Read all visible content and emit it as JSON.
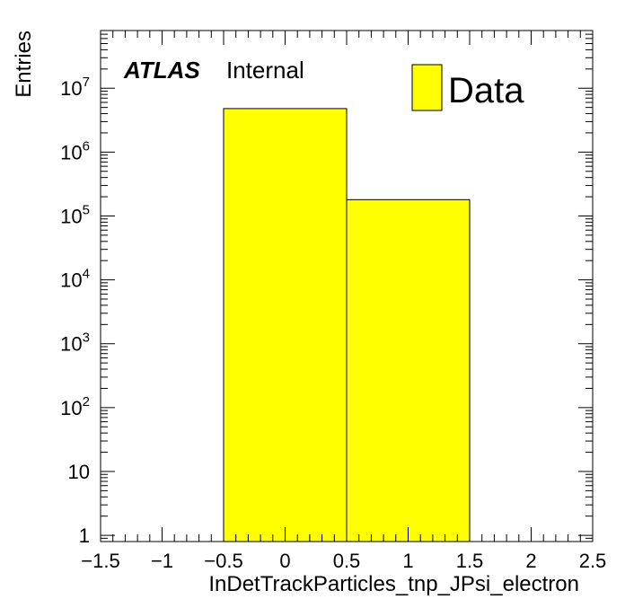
{
  "chart_data": {
    "type": "bar",
    "xlabel": "InDetTrackParticles_tnp_JPsi_electron",
    "ylabel": "Entries",
    "xlim": [
      -1.5,
      2.5
    ],
    "ylim": [
      0.8,
      80000000
    ],
    "yscale": "log",
    "grid": false,
    "legend_position": "top-right",
    "bins": [
      {
        "low": -0.5,
        "high": 0.5,
        "value": 4800000
      },
      {
        "low": 0.5,
        "high": 1.5,
        "value": 180000
      }
    ],
    "series": [
      {
        "name": "Data",
        "color": "#ffff00",
        "edge_color": "#000000"
      }
    ],
    "x_ticks": [
      {
        "value": -1.5,
        "label": "−1.5"
      },
      {
        "value": -1,
        "label": "−1"
      },
      {
        "value": -0.5,
        "label": "−0.5"
      },
      {
        "value": 0,
        "label": "0"
      },
      {
        "value": 0.5,
        "label": "0.5"
      },
      {
        "value": 1,
        "label": "1"
      },
      {
        "value": 1.5,
        "label": "1.5"
      },
      {
        "value": 2,
        "label": "2"
      },
      {
        "value": 2.5,
        "label": "2.5"
      }
    ],
    "y_ticks": [
      {
        "value": 1,
        "base": "1",
        "exp": ""
      },
      {
        "value": 10,
        "base": "10",
        "exp": ""
      },
      {
        "value": 100,
        "base": "10",
        "exp": "2"
      },
      {
        "value": 1000,
        "base": "10",
        "exp": "3"
      },
      {
        "value": 10000,
        "base": "10",
        "exp": "4"
      },
      {
        "value": 100000,
        "base": "10",
        "exp": "5"
      },
      {
        "value": 1000000,
        "base": "10",
        "exp": "6"
      },
      {
        "value": 10000000,
        "base": "10",
        "exp": "7"
      }
    ],
    "annotation": {
      "experiment": "ATLAS",
      "status": "Internal"
    },
    "legend": {
      "label": "Data"
    }
  }
}
